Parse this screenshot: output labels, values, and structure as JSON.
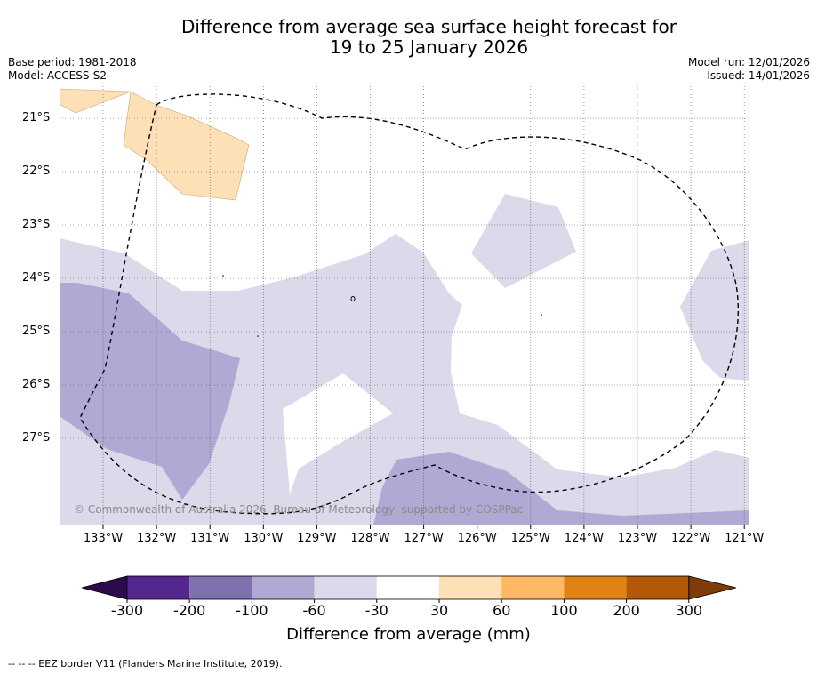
{
  "title_line1": "Difference from average sea surface height forecast for",
  "title_line2": "19 to 25 January 2026",
  "base_period": "Base period: 1981-2018",
  "model": "Model: ACCESS-S2",
  "model_run": "Model run: 12/01/2026",
  "issued": "Issued: 14/01/2026",
  "copyright": "© Commonwealth of Australia 2026, Bureau of Meteorology, supported by COSPPac",
  "latitudes": [
    "21°S",
    "22°S",
    "23°S",
    "24°S",
    "25°S",
    "26°S",
    "27°S"
  ],
  "longitudes": [
    "133°W",
    "132°W",
    "131°W",
    "130°W",
    "129°W",
    "128°W",
    "127°W",
    "126°W",
    "125°W",
    "124°W",
    "123°W",
    "122°W",
    "121°W"
  ],
  "colorbar": {
    "ticks": [
      "-300",
      "-200",
      "-100",
      "-60",
      "-30",
      "30",
      "60",
      "100",
      "200",
      "300"
    ],
    "colors": [
      "#2d0a4d",
      "#54278f",
      "#7f70ae",
      "#b0a9d3",
      "#dadaeb",
      "#ffffff",
      "#fee0b6",
      "#fdb863",
      "#e08214",
      "#b35806",
      "#7f3b08"
    ],
    "label": "Difference from average (mm)"
  },
  "legend_note": "--  --  -- EEZ border V11 (Flanders Marine Institute, 2019).",
  "map_data": {
    "lat_range": [
      -28.6,
      -20.4
    ],
    "lon_range": [
      -133.85,
      -120.95
    ]
  }
}
